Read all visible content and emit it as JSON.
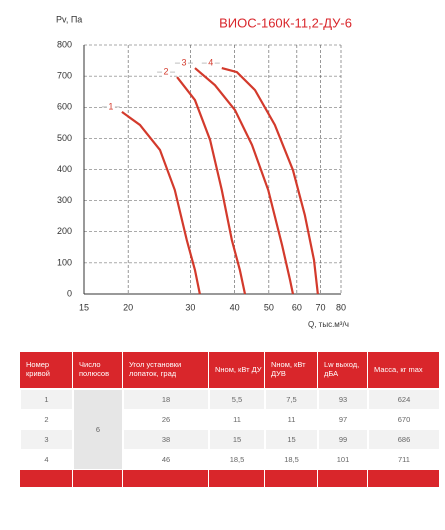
{
  "chart_data": {
    "type": "line",
    "title": "ВИОС-160К-11,2-ДУ-6",
    "y_label": "Pv, Па",
    "x_label": "Q, тыс.м³/ч",
    "xscale": "log",
    "xlim": [
      15,
      80
    ],
    "xticks": [
      15,
      20,
      30,
      40,
      50,
      60,
      70,
      80
    ],
    "ylim": [
      0,
      800
    ],
    "yticks": [
      0,
      100,
      200,
      300,
      400,
      500,
      600,
      700,
      800
    ],
    "grid": true,
    "series": [
      {
        "name": "1",
        "color": "#d33a2c",
        "x": [
          19.2,
          21.6,
          24.6,
          27.1,
          29.3,
          30.9,
          31.9
        ],
        "values": [
          585,
          543,
          463,
          334,
          173,
          77,
          0
        ]
      },
      {
        "name": "2",
        "color": "#d33a2c",
        "x": [
          27.5,
          30.9,
          34.1,
          36.8,
          39.3,
          41.4,
          42.8
        ],
        "values": [
          697,
          623,
          495,
          334,
          173,
          77,
          0
        ]
      },
      {
        "name": "3",
        "color": "#d33a2c",
        "x": [
          30.9,
          35.2,
          40.1,
          44.8,
          49.8,
          54.5,
          57.4,
          58.5
        ],
        "values": [
          726,
          671,
          591,
          479,
          334,
          157,
          45,
          0
        ]
      },
      {
        "name": "4",
        "color": "#d33a2c",
        "x": [
          36.8,
          40.6,
          45.7,
          52.0,
          58.5,
          63.2,
          67.1,
          68.8
        ],
        "values": [
          726,
          713,
          655,
          543,
          398,
          254,
          109,
          0
        ]
      }
    ]
  },
  "table": {
    "header": [
      "Номер кривой",
      "Число полюсов",
      "Угол установки лопаток, град",
      "Nном, кВт ДУ",
      "Nном, кВт ДУВ",
      "Lw выход, дБА",
      "Масса, кг max"
    ],
    "poles": "6",
    "rows": [
      [
        "1",
        "18",
        "5,5",
        "7,5",
        "93",
        "624"
      ],
      [
        "2",
        "26",
        "11",
        "11",
        "97",
        "670"
      ],
      [
        "3",
        "38",
        "15",
        "15",
        "99",
        "686"
      ],
      [
        "4",
        "46",
        "18,5",
        "18,5",
        "101",
        "711"
      ]
    ]
  }
}
